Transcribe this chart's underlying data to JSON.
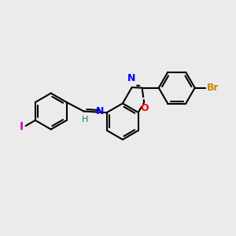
{
  "background_color": "#ebebeb",
  "bond_color": "#000000",
  "bond_width": 1.5,
  "atom_colors": {
    "I": "#cc00cc",
    "N": "#0000ff",
    "O": "#ff0000",
    "Br": "#cc8800",
    "H": "#008080",
    "C": "#000000"
  },
  "font_size": 9,
  "fig_width": 3.0,
  "fig_height": 3.0,
  "xlim": [
    0,
    10
  ],
  "ylim": [
    0,
    10
  ]
}
